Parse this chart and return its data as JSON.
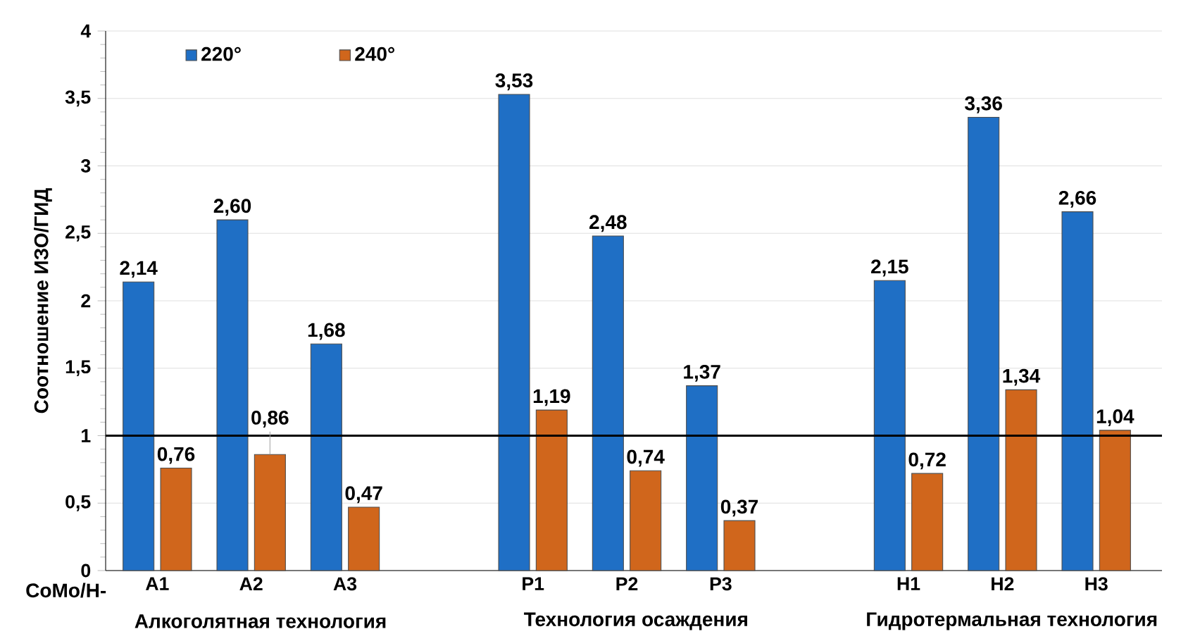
{
  "chart_data": {
    "type": "bar",
    "ylabel": "Соотношение ИЗО/ГИД",
    "categories": [
      "А1",
      "А2",
      "А3",
      null,
      "Р1",
      "Р2",
      "Р3",
      null,
      "Н1",
      "Н2",
      "Н3"
    ],
    "series": [
      {
        "name": "220°",
        "color": "#1f6fc5",
        "values": [
          2.14,
          2.6,
          1.68,
          null,
          3.53,
          2.48,
          1.37,
          null,
          2.15,
          3.36,
          2.66
        ],
        "value_labels": [
          "2,14",
          "2,60",
          "1,68",
          null,
          "3,53",
          "2,48",
          "1,37",
          null,
          "2,15",
          "3,36",
          "2,66"
        ]
      },
      {
        "name": "240°",
        "color": "#d0661c",
        "values": [
          0.76,
          0.86,
          0.47,
          null,
          1.19,
          0.74,
          0.37,
          null,
          0.72,
          1.34,
          1.04
        ],
        "value_labels": [
          "0,76",
          "0,86",
          "0,47",
          null,
          "1,19",
          "0,74",
          "0,37",
          null,
          "0,72",
          "1,34",
          "1,04"
        ]
      }
    ],
    "ylim": [
      0,
      4
    ],
    "yticks": [
      0,
      {
        "value": 0.5,
        "label": "0,5"
      },
      1,
      {
        "value": 1.5,
        "label": "1,5"
      },
      2,
      {
        "value": 2.5,
        "label": "2,5"
      },
      3,
      {
        "value": 3.5,
        "label": "3,5"
      },
      4
    ],
    "ref_lines": [
      {
        "axis": "y",
        "value": 1,
        "color": "#000000"
      }
    ],
    "annotations": [
      "CoMo/H-",
      "Алкоголятная технология",
      "Технология осаждения",
      "Гидротермальная технология"
    ],
    "grid": "y",
    "legend": "top left"
  }
}
